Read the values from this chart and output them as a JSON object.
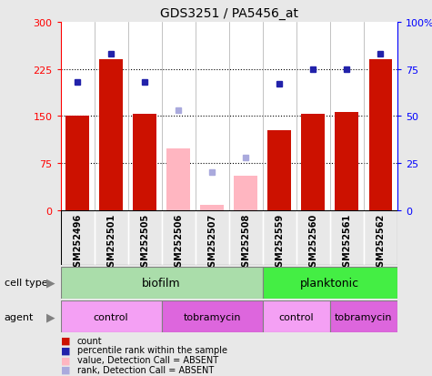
{
  "title": "GDS3251 / PA5456_at",
  "samples": [
    "GSM252496",
    "GSM252501",
    "GSM252505",
    "GSM252506",
    "GSM252507",
    "GSM252508",
    "GSM252559",
    "GSM252560",
    "GSM252561",
    "GSM252562"
  ],
  "count_values": [
    150,
    240,
    153,
    null,
    null,
    null,
    128,
    153,
    157,
    240
  ],
  "count_absent": [
    null,
    null,
    null,
    98,
    8,
    55,
    null,
    null,
    null,
    null
  ],
  "percentile_present": [
    68,
    83,
    68,
    null,
    null,
    null,
    67,
    75,
    75,
    83
  ],
  "percentile_absent": [
    null,
    null,
    null,
    53,
    20,
    28,
    null,
    null,
    null,
    null
  ],
  "cell_type_groups": [
    {
      "label": "biofilm",
      "start": 0,
      "end": 6,
      "color": "#aaddaa"
    },
    {
      "label": "planktonic",
      "start": 6,
      "end": 10,
      "color": "#44ee44"
    }
  ],
  "agent_groups": [
    {
      "label": "control",
      "start": 0,
      "end": 3,
      "color": "#f4a0f4"
    },
    {
      "label": "tobramycin",
      "start": 3,
      "end": 6,
      "color": "#dd66dd"
    },
    {
      "label": "control",
      "start": 6,
      "end": 8,
      "color": "#f4a0f4"
    },
    {
      "label": "tobramycin",
      "start": 8,
      "end": 10,
      "color": "#dd66dd"
    }
  ],
  "ylim_left": [
    0,
    300
  ],
  "ylim_right": [
    0,
    100
  ],
  "yticks_left": [
    0,
    75,
    150,
    225,
    300
  ],
  "yticks_right": [
    0,
    25,
    50,
    75,
    100
  ],
  "ytick_labels_left": [
    "0",
    "75",
    "150",
    "225",
    "300"
  ],
  "ytick_labels_right": [
    "0",
    "25",
    "50",
    "75",
    "100%"
  ],
  "bar_color_present": "#cc1100",
  "bar_color_absent": "#ffb6c1",
  "dot_color_present": "#2222aa",
  "dot_color_absent": "#aaaadd",
  "background_color": "#e8e8e8",
  "plot_bg_color": "#ffffff",
  "sample_bg_color": "#cccccc",
  "label_fontsize": 7,
  "tick_fontsize": 8
}
